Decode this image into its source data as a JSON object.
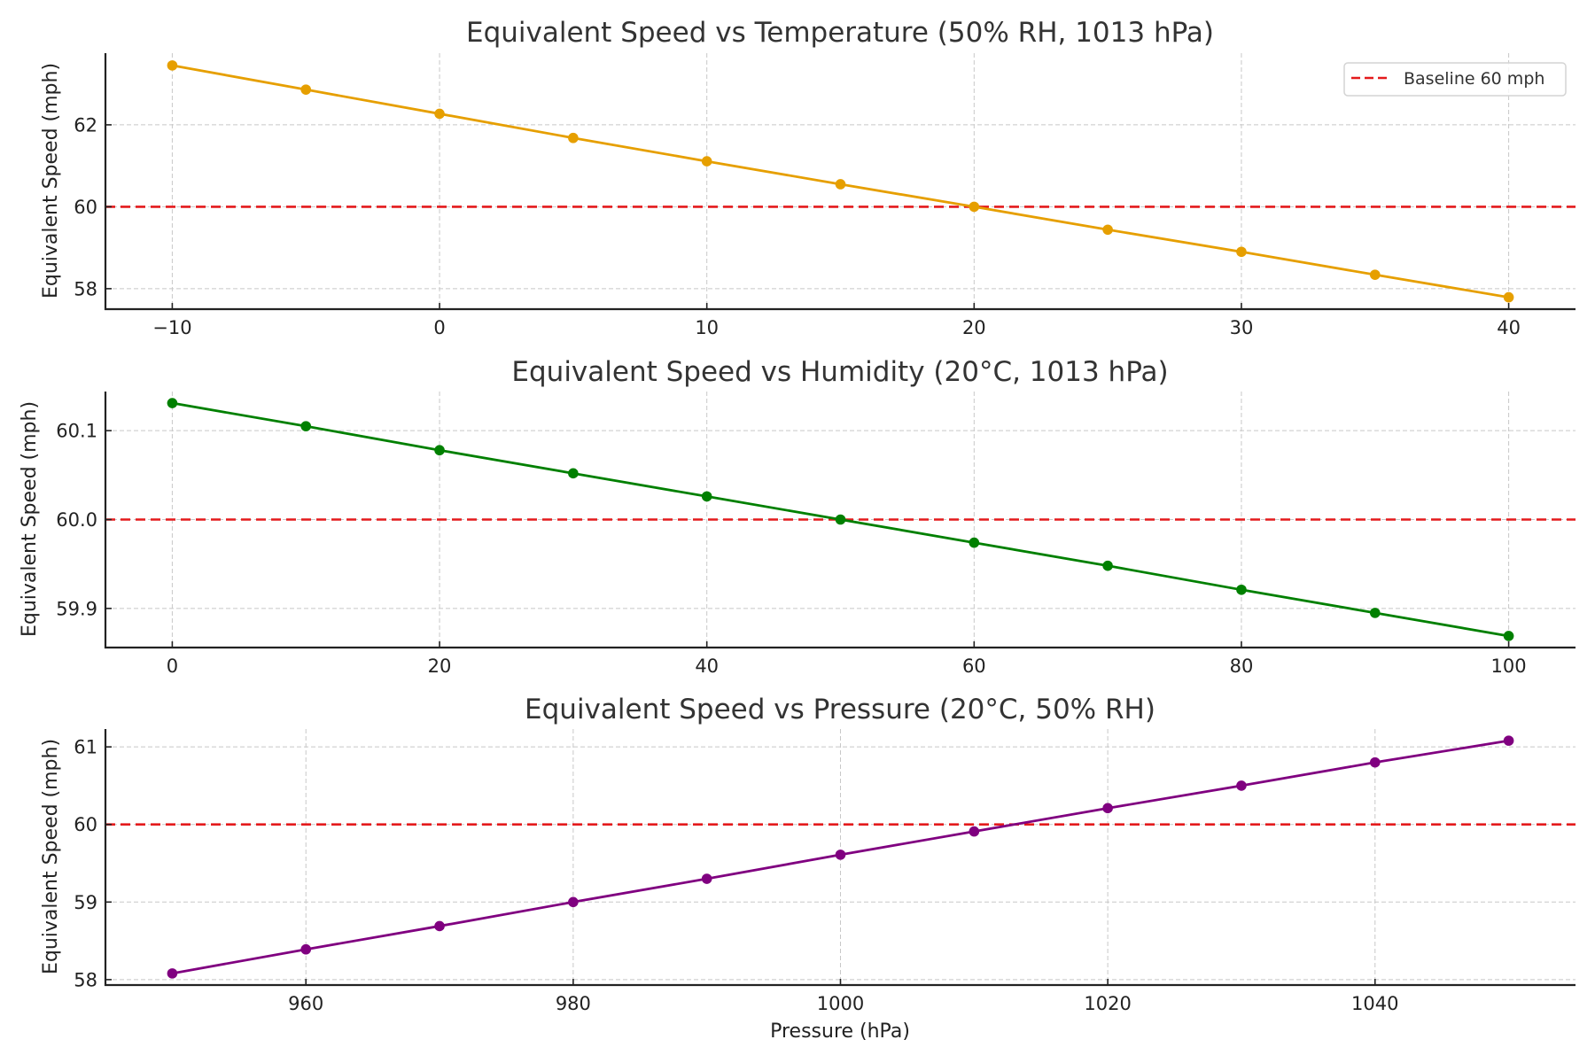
{
  "chart_data": [
    {
      "type": "line",
      "title": "Equivalent Speed vs Temperature (50% RH, 1013 hPa)",
      "xlabel": "",
      "ylabel": "Equivalent Speed (mph)",
      "x": [
        -10,
        -5,
        0,
        5,
        10,
        15,
        20,
        25,
        30,
        35,
        40
      ],
      "series": [
        {
          "name": "Equivalent Speed",
          "color": "#E69F00",
          "marker": "circle",
          "values": [
            63.45,
            62.86,
            62.27,
            61.68,
            61.11,
            60.55,
            60.0,
            59.44,
            58.9,
            58.34,
            57.79
          ]
        }
      ],
      "reference_line": {
        "name": "Baseline 60 mph",
        "y": 60,
        "color": "#E41A1C",
        "style": "dashed"
      },
      "xlim": [
        -12.5,
        42.5
      ],
      "ylim": [
        57.5,
        63.75
      ],
      "xticks": [
        -10,
        0,
        10,
        20,
        30,
        40
      ],
      "xtick_labels": [
        "−10",
        "0",
        "10",
        "20",
        "30",
        "40"
      ],
      "yticks": [
        58,
        60,
        62
      ],
      "ytick_labels": [
        "58",
        "60",
        "62"
      ],
      "grid": true,
      "legend": {
        "entries": [
          "Baseline 60 mph"
        ],
        "placement": "top-right"
      }
    },
    {
      "type": "line",
      "title": "Equivalent Speed vs Humidity (20°C, 1013 hPa)",
      "xlabel": "",
      "ylabel": "Equivalent Speed (mph)",
      "x": [
        0,
        10,
        20,
        30,
        40,
        50,
        60,
        70,
        80,
        90,
        100
      ],
      "series": [
        {
          "name": "Equivalent Speed",
          "color": "#008000",
          "marker": "circle",
          "values": [
            60.131,
            60.105,
            60.078,
            60.052,
            60.026,
            60.0,
            59.974,
            59.948,
            59.921,
            59.895,
            59.869
          ]
        }
      ],
      "reference_line": {
        "name": "Baseline 60 mph",
        "y": 60,
        "color": "#E41A1C",
        "style": "dashed"
      },
      "xlim": [
        -5,
        105
      ],
      "ylim": [
        59.856,
        60.144
      ],
      "xticks": [
        0,
        20,
        40,
        60,
        80,
        100
      ],
      "xtick_labels": [
        "0",
        "20",
        "40",
        "60",
        "80",
        "100"
      ],
      "yticks": [
        59.9,
        60.0,
        60.1
      ],
      "ytick_labels": [
        "59.9",
        "60.0",
        "60.1"
      ],
      "grid": true,
      "legend": null
    },
    {
      "type": "line",
      "title": "Equivalent Speed vs Pressure (20°C, 50% RH)",
      "xlabel": "Pressure (hPa)",
      "ylabel": "Equivalent Speed (mph)",
      "x": [
        950,
        960,
        970,
        980,
        990,
        1000,
        1010,
        1020,
        1030,
        1040,
        1050
      ],
      "series": [
        {
          "name": "Equivalent Speed",
          "color": "#800080",
          "marker": "circle",
          "values": [
            58.08,
            58.39,
            58.69,
            59.0,
            59.3,
            59.61,
            59.91,
            60.21,
            60.5,
            60.8,
            61.08
          ]
        }
      ],
      "reference_line": {
        "name": "Baseline 60 mph",
        "y": 60,
        "color": "#E41A1C",
        "style": "dashed"
      },
      "xlim": [
        945,
        1055
      ],
      "ylim": [
        57.93,
        61.23
      ],
      "xticks": [
        960,
        980,
        1000,
        1020,
        1040
      ],
      "xtick_labels": [
        "960",
        "980",
        "1000",
        "1020",
        "1040"
      ],
      "yticks": [
        58,
        59,
        60,
        61
      ],
      "ytick_labels": [
        "58",
        "59",
        "60",
        "61"
      ],
      "grid": true,
      "legend": null
    }
  ]
}
